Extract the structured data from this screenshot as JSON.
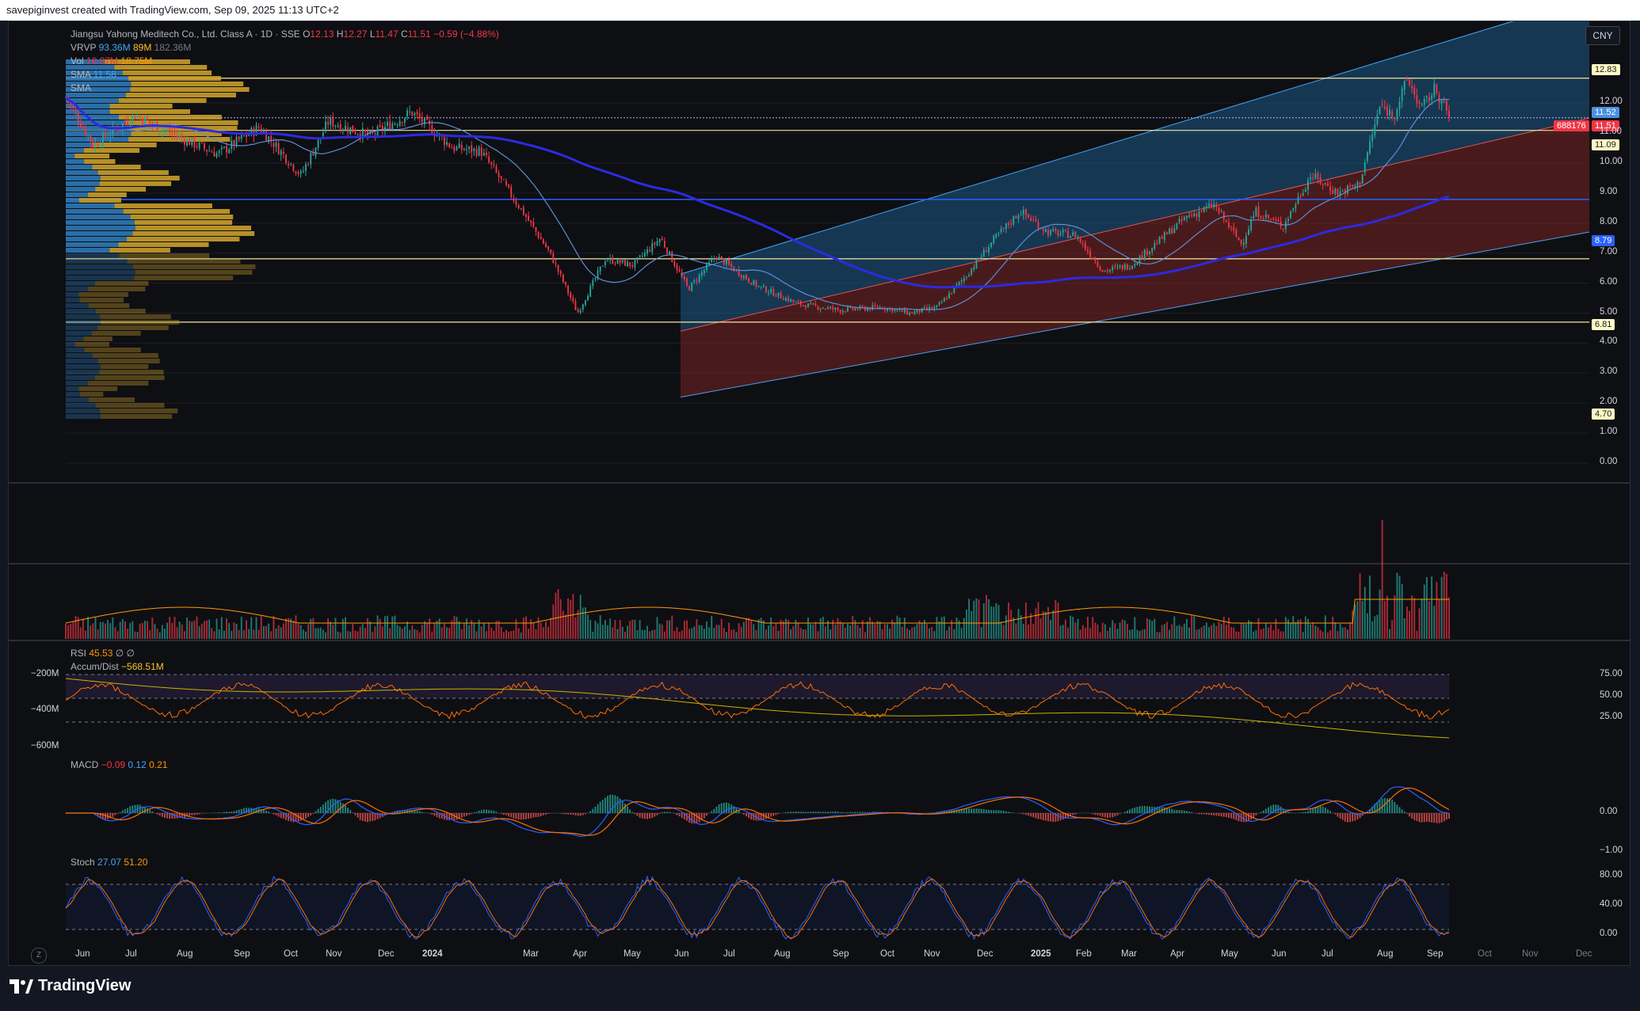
{
  "header": {
    "text": "savepiginvest created with TradingView.com, Sep 09, 2025 11:13 UTC+2"
  },
  "legend": {
    "symbol": "Jiangsu Yahong Meditech Co., Ltd. Class A · 1D · SSE",
    "ohlc": {
      "o_label": "O",
      "o": "12.13",
      "h_label": "H",
      "h": "12.27",
      "l_label": "L",
      "l": "11.47",
      "c_label": "C",
      "c": "11.51",
      "change": "−0.59 (−4.88%)"
    },
    "vrvp": {
      "label": "VRVP",
      "v1": "93.36M",
      "v2": "89M",
      "v3": "182.36M"
    },
    "vol": {
      "label": "Vol",
      "v1": "18.87M",
      "v2": "18.75M"
    },
    "sma1": {
      "label": "SMA",
      "v": "11.58"
    },
    "sma2": {
      "label": "SMA",
      "v": ""
    }
  },
  "currency_button": "CNY",
  "price_axis": {
    "ticks": [
      "12.00",
      "11.00",
      "10.00",
      "9.00",
      "8.00",
      "7.00",
      "6.00",
      "5.00",
      "4.00",
      "3.00",
      "2.00",
      "1.00",
      "0.00"
    ],
    "tags": {
      "level_top": "12.83",
      "sma_value": "11.52",
      "symbol_code": "688176",
      "last_price": "11.51",
      "level_support": "11.09",
      "level_blue": "8.79",
      "level_mid": "6.81",
      "level_low": "4.70"
    }
  },
  "rsi_pane": {
    "rsi_label": "RSI",
    "rsi_value": "45.53",
    "rsi_extra1": "∅",
    "rsi_extra2": "∅",
    "ad_label": "Accum/Dist",
    "ad_value": "−568.51M",
    "left_ticks": [
      "−200M",
      "−400M",
      "−600M"
    ],
    "right_ticks": [
      "75.00",
      "50.00",
      "25.00"
    ]
  },
  "macd_pane": {
    "label": "MACD",
    "v1": "−0.09",
    "v2": "0.12",
    "v3": "0.21",
    "right_ticks": [
      "0.00",
      "−1.00"
    ]
  },
  "stoch_pane": {
    "label": "Stoch",
    "k": "27.07",
    "d": "51.20",
    "right_ticks": [
      "80.00",
      "40.00",
      "0.00"
    ]
  },
  "time_axis": [
    "Jun",
    "Jul",
    "Aug",
    "Sep",
    "Oct",
    "Nov",
    "Dec",
    "2024",
    "Mar",
    "Apr",
    "May",
    "Jun",
    "Jul",
    "Aug",
    "Sep",
    "Oct",
    "Nov",
    "Dec",
    "2025",
    "Feb",
    "Mar",
    "Apr",
    "May",
    "Jun",
    "Jul",
    "Aug",
    "Sep",
    "Oct",
    "Nov",
    "Dec"
  ],
  "zoom_button": "Z",
  "footer": {
    "brand": "TradingView"
  },
  "colors": {
    "up": "#26a69a",
    "down": "#f23645",
    "sma_long": "#2b2be0",
    "sma_short": "#5b8fd6",
    "channel_blue": "#1e5a87",
    "channel_red": "#7a2424",
    "hline": "#f5e6a0",
    "blue_level": "#2962ff",
    "vrvp_up": "#2f7fc1",
    "vrvp_down": "#d4a72c"
  },
  "chart_data": {
    "type": "candlestick",
    "price_range": [
      0,
      13.5
    ],
    "horizontal_levels": [
      12.83,
      11.09,
      8.79,
      6.81,
      4.7
    ],
    "last_price": 11.51,
    "anchors": [
      {
        "t": 0.0,
        "p": 12.2
      },
      {
        "t": 0.02,
        "p": 10.6
      },
      {
        "t": 0.05,
        "p": 11.6
      },
      {
        "t": 0.08,
        "p": 10.9
      },
      {
        "t": 0.11,
        "p": 10.3
      },
      {
        "t": 0.14,
        "p": 11.2
      },
      {
        "t": 0.17,
        "p": 9.6
      },
      {
        "t": 0.19,
        "p": 11.4
      },
      {
        "t": 0.22,
        "p": 10.9
      },
      {
        "t": 0.25,
        "p": 11.7
      },
      {
        "t": 0.28,
        "p": 10.5
      },
      {
        "t": 0.3,
        "p": 10.4
      },
      {
        "t": 0.33,
        "p": 8.4
      },
      {
        "t": 0.35,
        "p": 7.0
      },
      {
        "t": 0.37,
        "p": 5.0
      },
      {
        "t": 0.39,
        "p": 6.8
      },
      {
        "t": 0.41,
        "p": 6.6
      },
      {
        "t": 0.43,
        "p": 7.5
      },
      {
        "t": 0.45,
        "p": 5.8
      },
      {
        "t": 0.47,
        "p": 6.9
      },
      {
        "t": 0.5,
        "p": 5.9
      },
      {
        "t": 0.53,
        "p": 5.3
      },
      {
        "t": 0.56,
        "p": 5.1
      },
      {
        "t": 0.59,
        "p": 5.2
      },
      {
        "t": 0.61,
        "p": 5.0
      },
      {
        "t": 0.63,
        "p": 5.2
      },
      {
        "t": 0.65,
        "p": 6.2
      },
      {
        "t": 0.67,
        "p": 7.4
      },
      {
        "t": 0.69,
        "p": 8.4
      },
      {
        "t": 0.71,
        "p": 7.7
      },
      {
        "t": 0.73,
        "p": 7.6
      },
      {
        "t": 0.75,
        "p": 6.4
      },
      {
        "t": 0.77,
        "p": 6.6
      },
      {
        "t": 0.79,
        "p": 7.4
      },
      {
        "t": 0.81,
        "p": 8.2
      },
      {
        "t": 0.83,
        "p": 8.6
      },
      {
        "t": 0.85,
        "p": 7.3
      },
      {
        "t": 0.86,
        "p": 8.4
      },
      {
        "t": 0.88,
        "p": 7.9
      },
      {
        "t": 0.9,
        "p": 9.6
      },
      {
        "t": 0.92,
        "p": 9.0
      },
      {
        "t": 0.935,
        "p": 9.3
      },
      {
        "t": 0.95,
        "p": 11.9
      },
      {
        "t": 0.96,
        "p": 11.6
      },
      {
        "t": 0.97,
        "p": 12.8
      },
      {
        "t": 0.98,
        "p": 11.8
      },
      {
        "t": 0.99,
        "p": 12.5
      },
      {
        "t": 1.0,
        "p": 11.51
      }
    ]
  }
}
